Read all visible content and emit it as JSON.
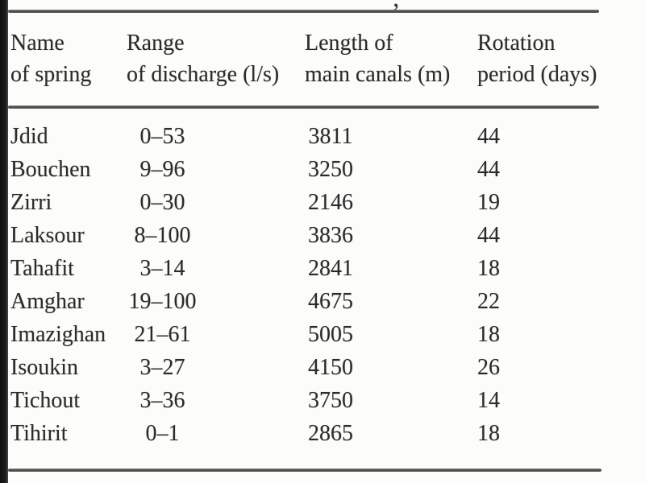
{
  "page": {
    "background_color": "#fcfcfa",
    "edge_bar_color": "#151515",
    "rule_color": "#4f4f4f",
    "text_color": "#2b2b2b",
    "caption_fragment": ","
  },
  "table": {
    "columns": [
      {
        "id": "name",
        "label_line1": "Name",
        "label_line2": "of spring"
      },
      {
        "id": "discharge_range",
        "label_line1": "Range",
        "label_line2": "of discharge (l/s)"
      },
      {
        "id": "canal_length",
        "label_line1": "Length of",
        "label_line2": "main canals (m)"
      },
      {
        "id": "rotation_period",
        "label_line1": "Rotation",
        "label_line2": "period (days)"
      }
    ],
    "rows": [
      {
        "name": "Jdid",
        "discharge_range": "0–53",
        "canal_length": "3811",
        "rotation_period": "44"
      },
      {
        "name": "Bouchen",
        "discharge_range": "9–96",
        "canal_length": "3250",
        "rotation_period": "44"
      },
      {
        "name": "Zirri",
        "discharge_range": "0–30",
        "canal_length": "2146",
        "rotation_period": "19"
      },
      {
        "name": "Laksour",
        "discharge_range": "8–100",
        "canal_length": "3836",
        "rotation_period": "44"
      },
      {
        "name": "Tahafit",
        "discharge_range": "3–14",
        "canal_length": "2841",
        "rotation_period": "18"
      },
      {
        "name": "Amghar",
        "discharge_range": "19–100",
        "canal_length": "4675",
        "rotation_period": "22"
      },
      {
        "name": "Imazighan",
        "discharge_range": "21–61",
        "canal_length": "5005",
        "rotation_period": "18"
      },
      {
        "name": "Isoukin",
        "discharge_range": "3–27",
        "canal_length": "4150",
        "rotation_period": "26"
      },
      {
        "name": "Tichout",
        "discharge_range": "3–36",
        "canal_length": "3750",
        "rotation_period": "14"
      },
      {
        "name": "Tihirit",
        "discharge_range": "0–1",
        "canal_length": "2865",
        "rotation_period": "18"
      }
    ]
  }
}
